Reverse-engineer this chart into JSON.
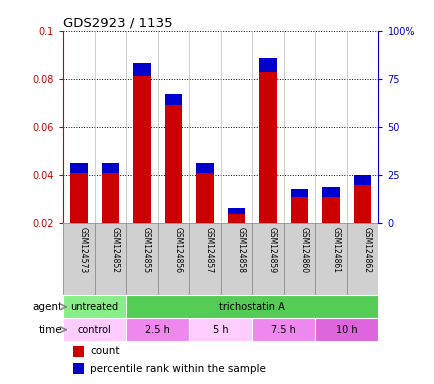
{
  "title": "GDS2923 / 1135",
  "samples": [
    "GSM124573",
    "GSM124852",
    "GSM124855",
    "GSM124856",
    "GSM124857",
    "GSM124858",
    "GSM124859",
    "GSM124860",
    "GSM124861",
    "GSM124862"
  ],
  "count_values": [
    0.041,
    0.041,
    0.081,
    0.069,
    0.041,
    0.024,
    0.083,
    0.031,
    0.031,
    0.036
  ],
  "percentile_values": [
    5,
    5,
    7,
    6,
    5,
    3,
    7,
    4,
    5,
    5
  ],
  "ylim_left": [
    0.02,
    0.1
  ],
  "ylim_right": [
    0,
    100
  ],
  "yticks_left": [
    0.02,
    0.04,
    0.06,
    0.08,
    0.1
  ],
  "yticks_right": [
    0,
    25,
    50,
    75,
    100
  ],
  "ytick_labels_left": [
    "0.02",
    "0.04",
    "0.06",
    "0.08",
    "0.1"
  ],
  "ytick_labels_right": [
    "0",
    "25",
    "50",
    "75",
    "100%"
  ],
  "count_color": "#cc0000",
  "percentile_color": "#0000cc",
  "agent_row": [
    {
      "label": "untreated",
      "span": [
        0,
        2
      ],
      "color": "#88ee88"
    },
    {
      "label": "trichostatin A",
      "span": [
        2,
        10
      ],
      "color": "#55cc55"
    }
  ],
  "time_row": [
    {
      "label": "control",
      "span": [
        0,
        2
      ],
      "color": "#ffccff"
    },
    {
      "label": "2.5 h",
      "span": [
        2,
        4
      ],
      "color": "#ee88ee"
    },
    {
      "label": "5 h",
      "span": [
        4,
        6
      ],
      "color": "#ffccff"
    },
    {
      "label": "7.5 h",
      "span": [
        6,
        8
      ],
      "color": "#ee88ee"
    },
    {
      "label": "10 h",
      "span": [
        8,
        10
      ],
      "color": "#dd66dd"
    }
  ],
  "legend_count_label": "count",
  "legend_percentile_label": "percentile rank within the sample",
  "agent_label": "agent",
  "time_label": "time",
  "bg_color": "#ffffff",
  "tick_color_left": "#cc0000",
  "tick_color_right": "#0000cc"
}
